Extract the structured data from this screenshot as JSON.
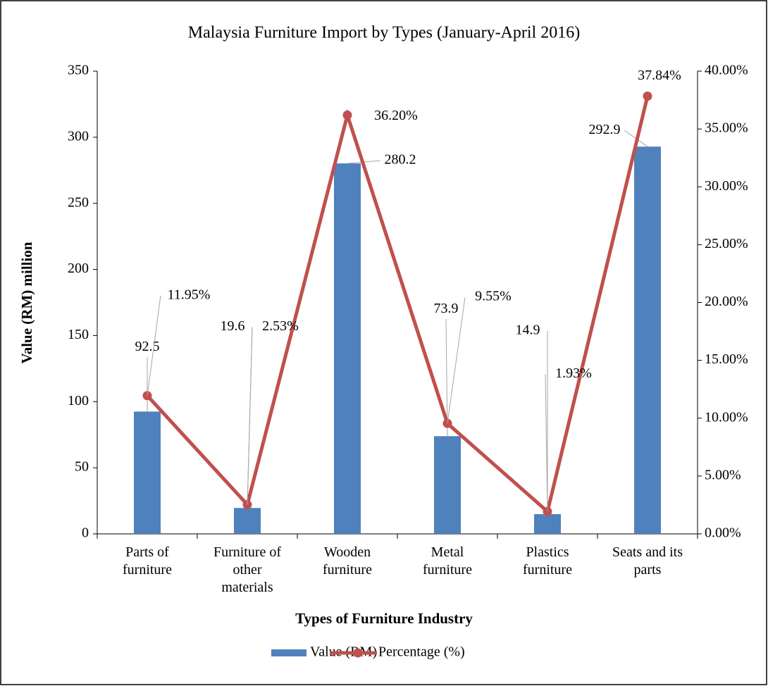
{
  "chart_data": {
    "type": "bar",
    "title": "Malaysia Furniture Import by Types (January-April 2016)",
    "x_label": "Types of Furniture Industry",
    "y_label": "Value (RM) million",
    "categories": [
      "Parts of furniture",
      "Furniture of other materials",
      "Wooden furniture",
      "Metal furniture",
      "Plastics furniture",
      "Seats and its parts"
    ],
    "series": [
      {
        "name": "Value (RM)",
        "type": "bar",
        "color": "#4f81bd",
        "values": [
          92.5,
          19.6,
          280.2,
          73.9,
          14.9,
          292.9
        ]
      },
      {
        "name": "Percentage (%)",
        "type": "line",
        "axis": "y2",
        "color": "#c0504d",
        "values": [
          11.95,
          2.53,
          36.2,
          9.55,
          1.93,
          37.84
        ],
        "value_labels": [
          "11.95%",
          "2.53%",
          "36.20%",
          "9.55%",
          "1.93%",
          "37.84%"
        ]
      }
    ],
    "ylim": [
      0,
      350
    ],
    "yticks": [
      0,
      50,
      100,
      150,
      200,
      250,
      300,
      350
    ],
    "y2lim": [
      0,
      40
    ],
    "y2ticks": [
      {
        "value": 0,
        "label": "0.00%"
      },
      {
        "value": 5,
        "label": "5.00%"
      },
      {
        "value": 10,
        "label": "10.00%"
      },
      {
        "value": 15,
        "label": "15.00%"
      },
      {
        "value": 20,
        "label": "20.00%"
      },
      {
        "value": 25,
        "label": "25.00%"
      },
      {
        "value": 30,
        "label": "30.00%"
      },
      {
        "value": 35,
        "label": "35.00%"
      },
      {
        "value": 40,
        "label": "40.00%"
      }
    ],
    "grid": false,
    "legend": "bottom"
  }
}
